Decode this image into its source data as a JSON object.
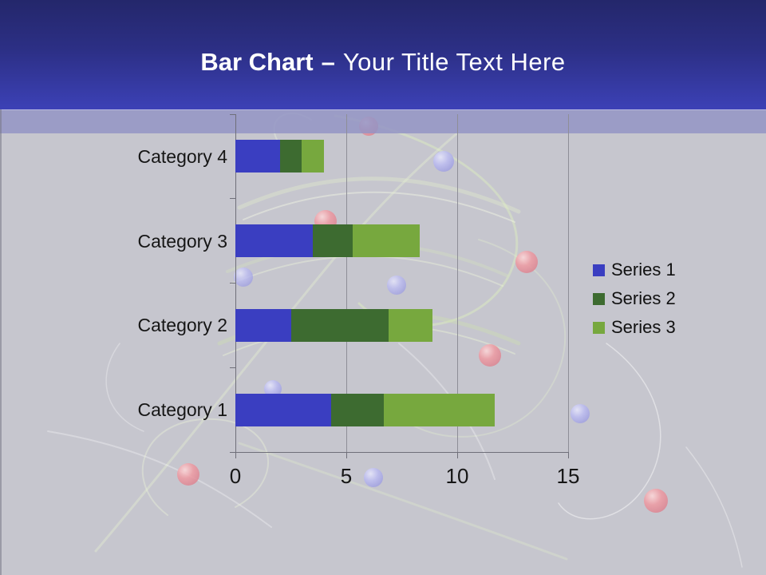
{
  "slide_title": {
    "bold": "Bar Chart",
    "separator": "–",
    "regular": "Your Title Text Here"
  },
  "chart_data": {
    "type": "bar",
    "orientation": "horizontal",
    "stacked": true,
    "title": "",
    "categories": [
      "Category 1",
      "Category 2",
      "Category 3",
      "Category 4"
    ],
    "category_display_order_top_to_bottom": [
      "Category 4",
      "Category 3",
      "Category 2",
      "Category 1"
    ],
    "series": [
      {
        "name": "Series 1",
        "color": "#3a3ec1",
        "values": [
          4.3,
          2.5,
          3.5,
          2
        ]
      },
      {
        "name": "Series 2",
        "color": "#3d6b30",
        "values": [
          2.4,
          4.4,
          1.8,
          1
        ]
      },
      {
        "name": "Series 3",
        "color": "#77a83e",
        "values": [
          5,
          2,
          3,
          1
        ]
      }
    ],
    "x_ticks": [
      "0",
      "5",
      "10",
      "15"
    ],
    "xlim": [
      0,
      15
    ],
    "grid": "vertical-major",
    "legend_position": "right"
  },
  "colors": {
    "header_gradient_top": "#272b72",
    "header_gradient_bottom": "#3c41b6",
    "accent_band": "#9597c5",
    "slide_background": "#c6c6ce",
    "gridline": "#8e8e97",
    "axis_line": "#72727b",
    "chart_text": "#161616",
    "title_text": "#ffffff",
    "decor_sphere_red": "#ee9aa2",
    "decor_sphere_purple": "#bcbcf1"
  }
}
